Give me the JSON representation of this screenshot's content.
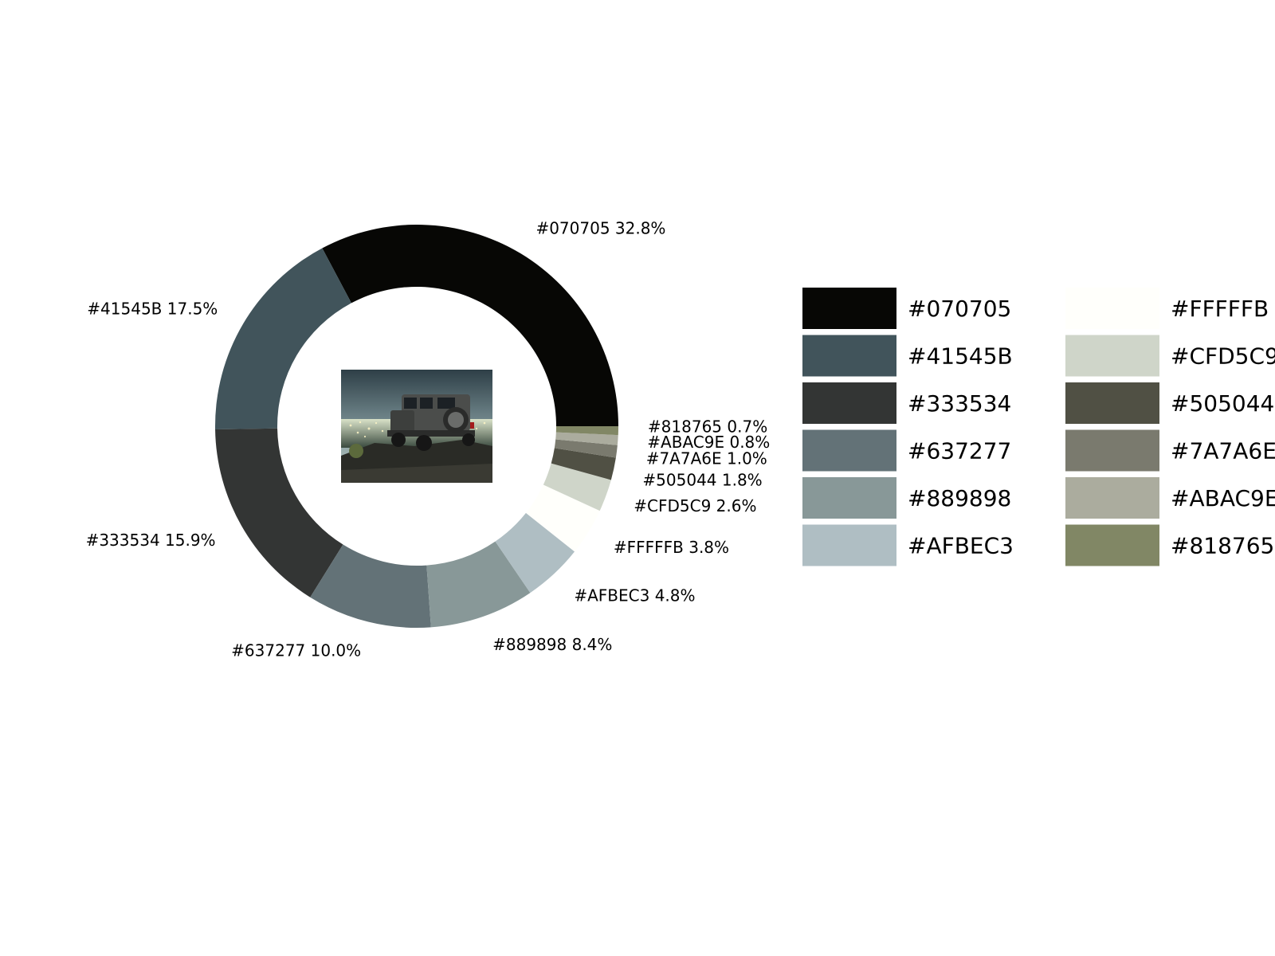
{
  "chart_data": {
    "type": "pie",
    "style": "donut",
    "start_angle_deg": 0,
    "direction": "counterclockwise",
    "legend_placement": "right",
    "legend_columns": 2,
    "center_image": "thumbnail of an off-road SUV on a hill overlooking a night city",
    "slices": [
      {
        "label": "#070705",
        "value": 32.8,
        "pct_label": "32.8%",
        "color": "#070705"
      },
      {
        "label": "#41545B",
        "value": 17.5,
        "pct_label": "17.5%",
        "color": "#41545B"
      },
      {
        "label": "#333534",
        "value": 15.9,
        "pct_label": "15.9%",
        "color": "#333534"
      },
      {
        "label": "#637277",
        "value": 10.0,
        "pct_label": "10.0%",
        "color": "#637277"
      },
      {
        "label": "#889898",
        "value": 8.4,
        "pct_label": "8.4%",
        "color": "#889898"
      },
      {
        "label": "#AFBEC3",
        "value": 4.8,
        "pct_label": "4.8%",
        "color": "#AFBEC3"
      },
      {
        "label": "#FFFFFB",
        "value": 3.8,
        "pct_label": "3.8%",
        "color": "#FFFFFB"
      },
      {
        "label": "#CFD5C9",
        "value": 2.6,
        "pct_label": "2.6%",
        "color": "#CFD5C9"
      },
      {
        "label": "#505044",
        "value": 1.8,
        "pct_label": "1.8%",
        "color": "#505044"
      },
      {
        "label": "#7A7A6E",
        "value": 1.0,
        "pct_label": "1.0%",
        "color": "#7A7A6E"
      },
      {
        "label": "#ABAC9E",
        "value": 0.8,
        "pct_label": "0.8%",
        "color": "#ABAC9E"
      },
      {
        "label": "#818765",
        "value": 0.7,
        "pct_label": "0.7%",
        "color": "#818765"
      }
    ]
  }
}
